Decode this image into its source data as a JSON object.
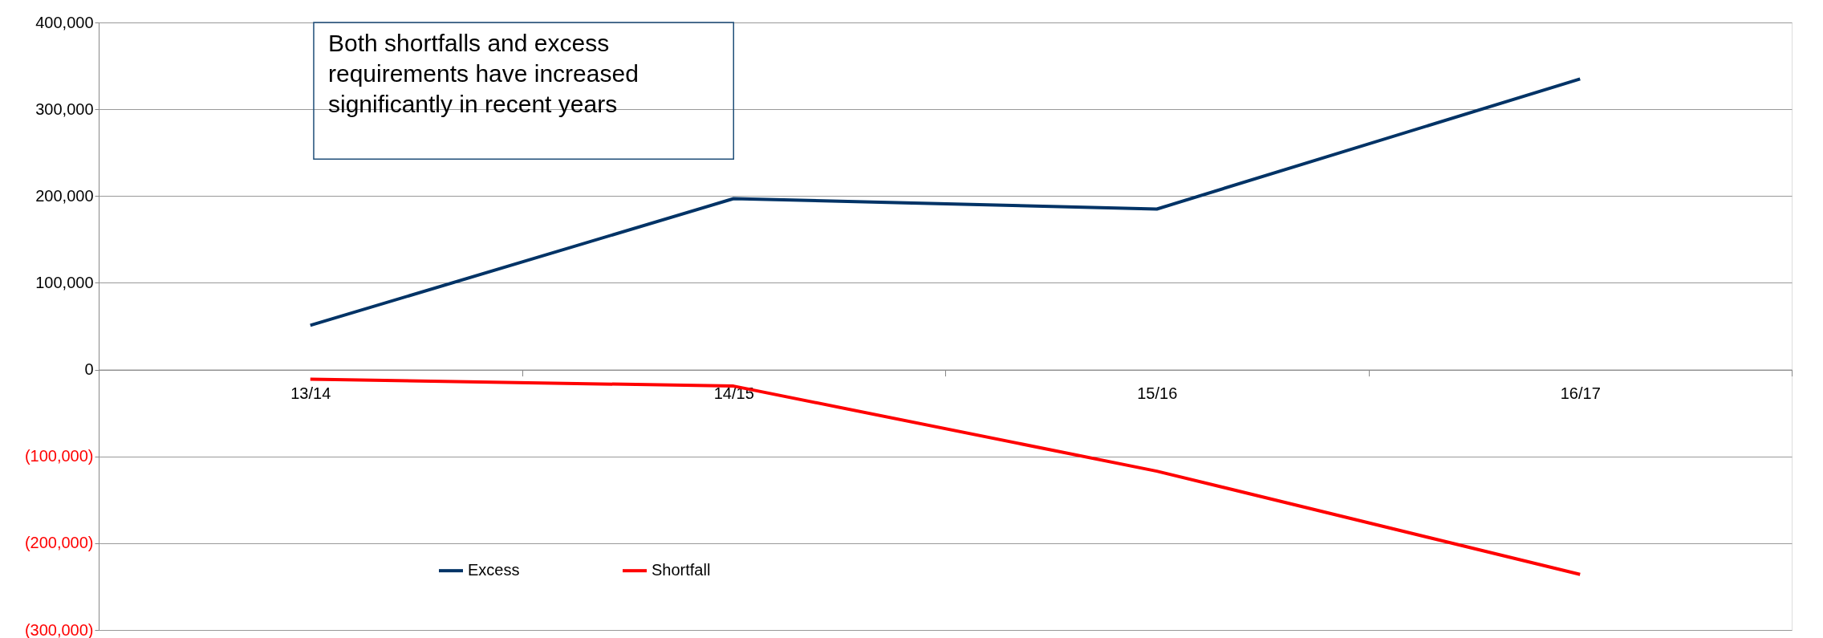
{
  "chart_data": {
    "type": "line",
    "categories": [
      "13/14",
      "14/15",
      "15/16",
      "16/17"
    ],
    "series": [
      {
        "name": "Excess",
        "color": "#003366",
        "values": [
          51000,
          197000,
          185000,
          335000
        ]
      },
      {
        "name": "Shortfall",
        "color": "#ff0000",
        "values": [
          -11000,
          -19000,
          -117000,
          -236000
        ]
      }
    ],
    "ylim": [
      -300000,
      400000
    ],
    "yticks": [
      {
        "value": -300000,
        "label": "(300,000)"
      },
      {
        "value": -200000,
        "label": "(200,000)"
      },
      {
        "value": -100000,
        "label": "(100,000)"
      },
      0,
      {
        "value": 100000,
        "label": "100,000"
      },
      {
        "value": 200000,
        "label": "200,000"
      },
      {
        "value": 300000,
        "label": "300,000"
      },
      {
        "value": 400000,
        "label": "400,000"
      }
    ],
    "annotations": [
      "Both shortfalls and excess requirements have increased significantly in recent years"
    ],
    "grid": "y",
    "legend": "bottom",
    "marker": "none",
    "line_style": "solid"
  }
}
